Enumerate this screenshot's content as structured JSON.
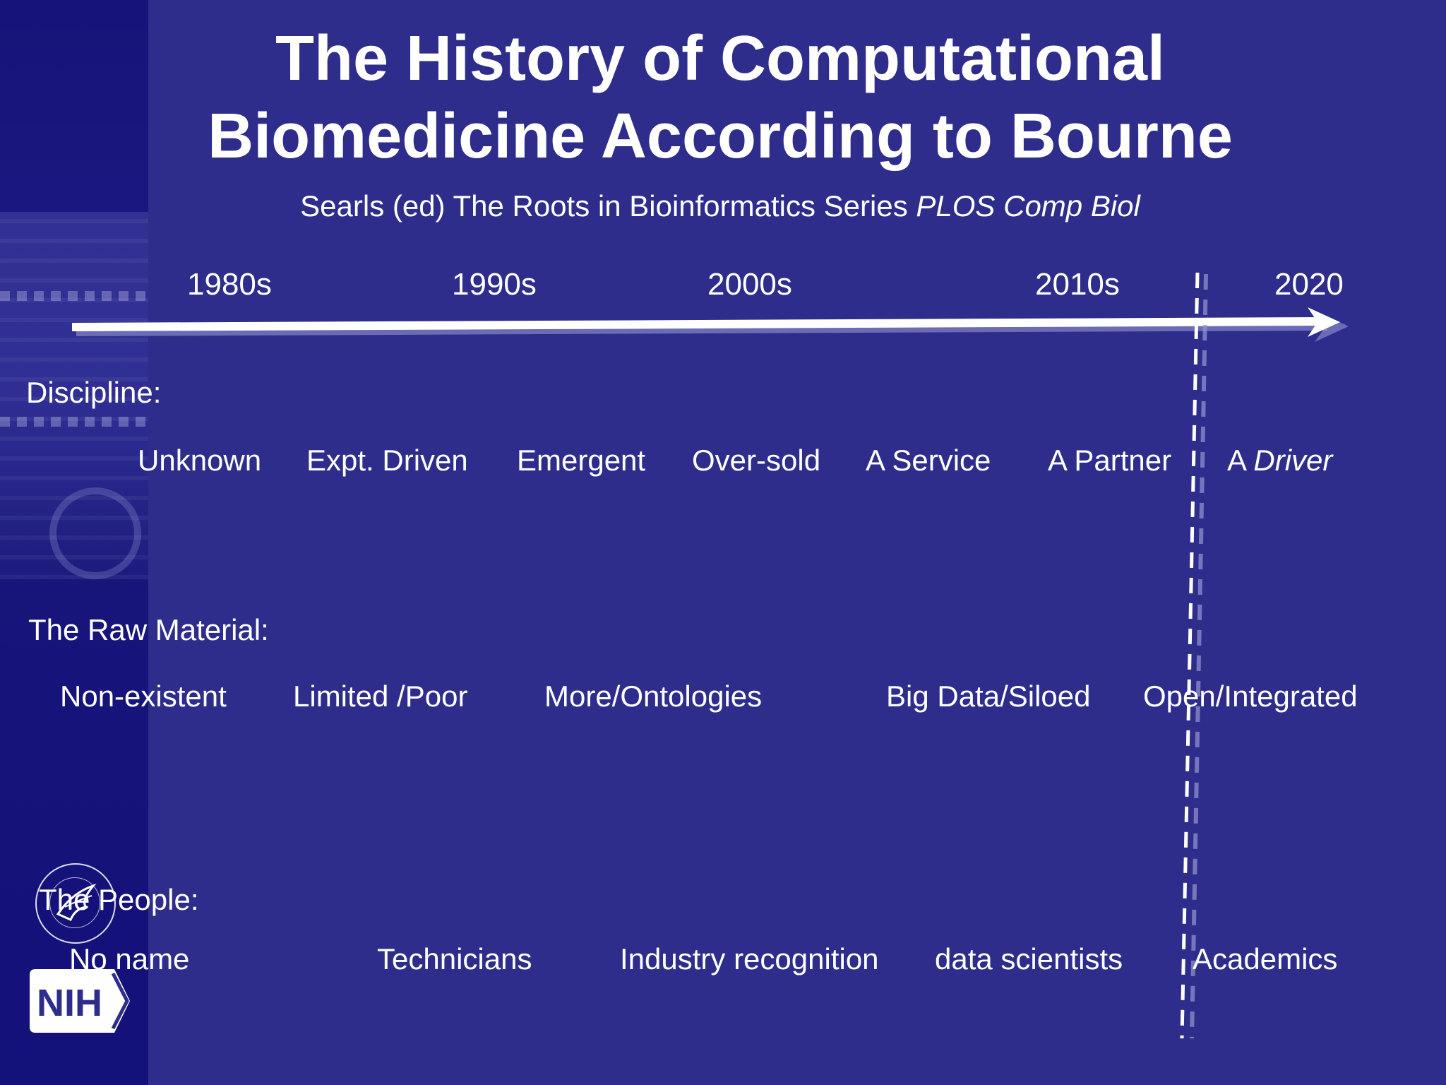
{
  "slide": {
    "title_line1": "The History of Computational",
    "title_line2": "Biomedicine According to Bourne",
    "subtitle_plain": "Searls (ed) The Roots in Bioinformatics Series ",
    "subtitle_italic": "PLOS Comp Biol"
  },
  "timeline": {
    "decades": [
      "1980s",
      "1990s",
      "2000s",
      "2010s",
      "2020"
    ]
  },
  "discipline": {
    "label": "Discipline:",
    "items": [
      "Unknown",
      "Expt. Driven",
      "Emergent",
      "Over-sold",
      "A Service",
      "A Partner"
    ],
    "last_prefix": "A ",
    "last_italic": "Driver"
  },
  "raw_material": {
    "label": "The Raw Material:",
    "items": [
      "Non-existent",
      "Limited /Poor",
      "More/Ontologies",
      "Big Data/Siloed",
      "Open/Integrated"
    ]
  },
  "people": {
    "label": "The People:",
    "items": [
      "No name",
      "Technicians",
      "Industry recognition",
      "data scientists",
      "Academics"
    ]
  },
  "logos": {
    "nih": "NIH"
  },
  "colors": {
    "background": "#2e2d8c",
    "side_panel": "#17157a",
    "text": "#ffffff"
  }
}
